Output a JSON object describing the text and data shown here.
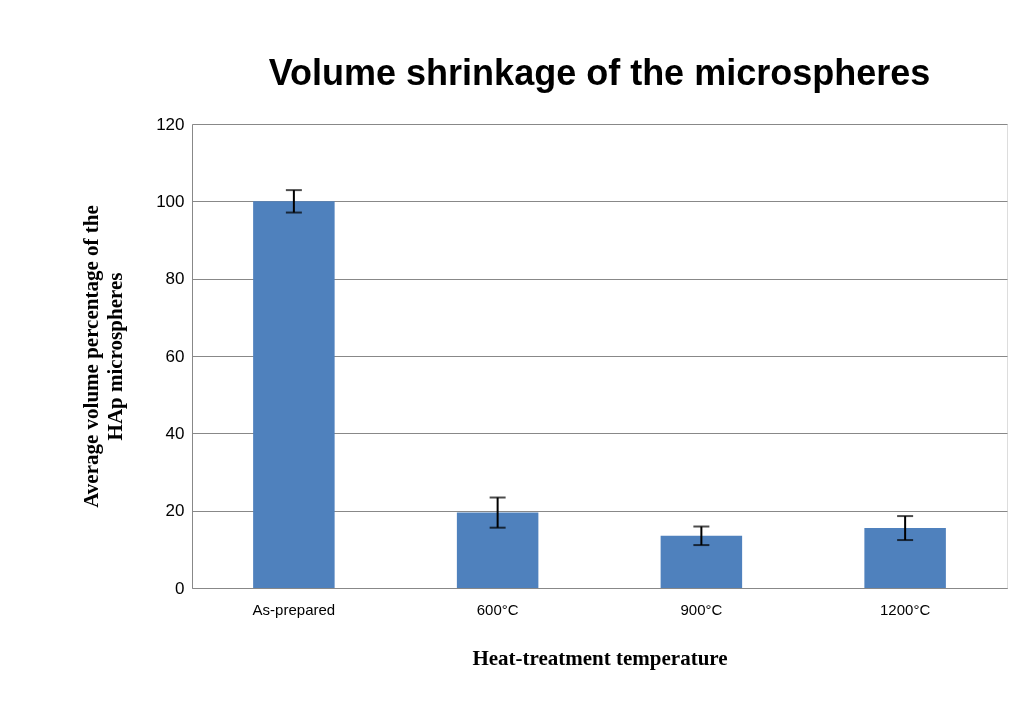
{
  "chart_data": {
    "type": "bar",
    "title": "Volume shrinkage of the microspheres",
    "xlabel": "Heat-treatment temperature",
    "ylabel": "Average volume percentage of the\nHAp microspheres",
    "categories": [
      "As-prepared",
      "600°C",
      "900°C",
      "1200°C"
    ],
    "values": [
      100,
      19.5,
      13.5,
      15.5
    ],
    "errors": [
      2.9,
      3.9,
      2.4,
      3.1
    ],
    "color": "#4f81bd",
    "ylim": [
      0,
      120
    ],
    "yticks": [
      0,
      20,
      40,
      60,
      80,
      100,
      120
    ],
    "grid": "y"
  }
}
